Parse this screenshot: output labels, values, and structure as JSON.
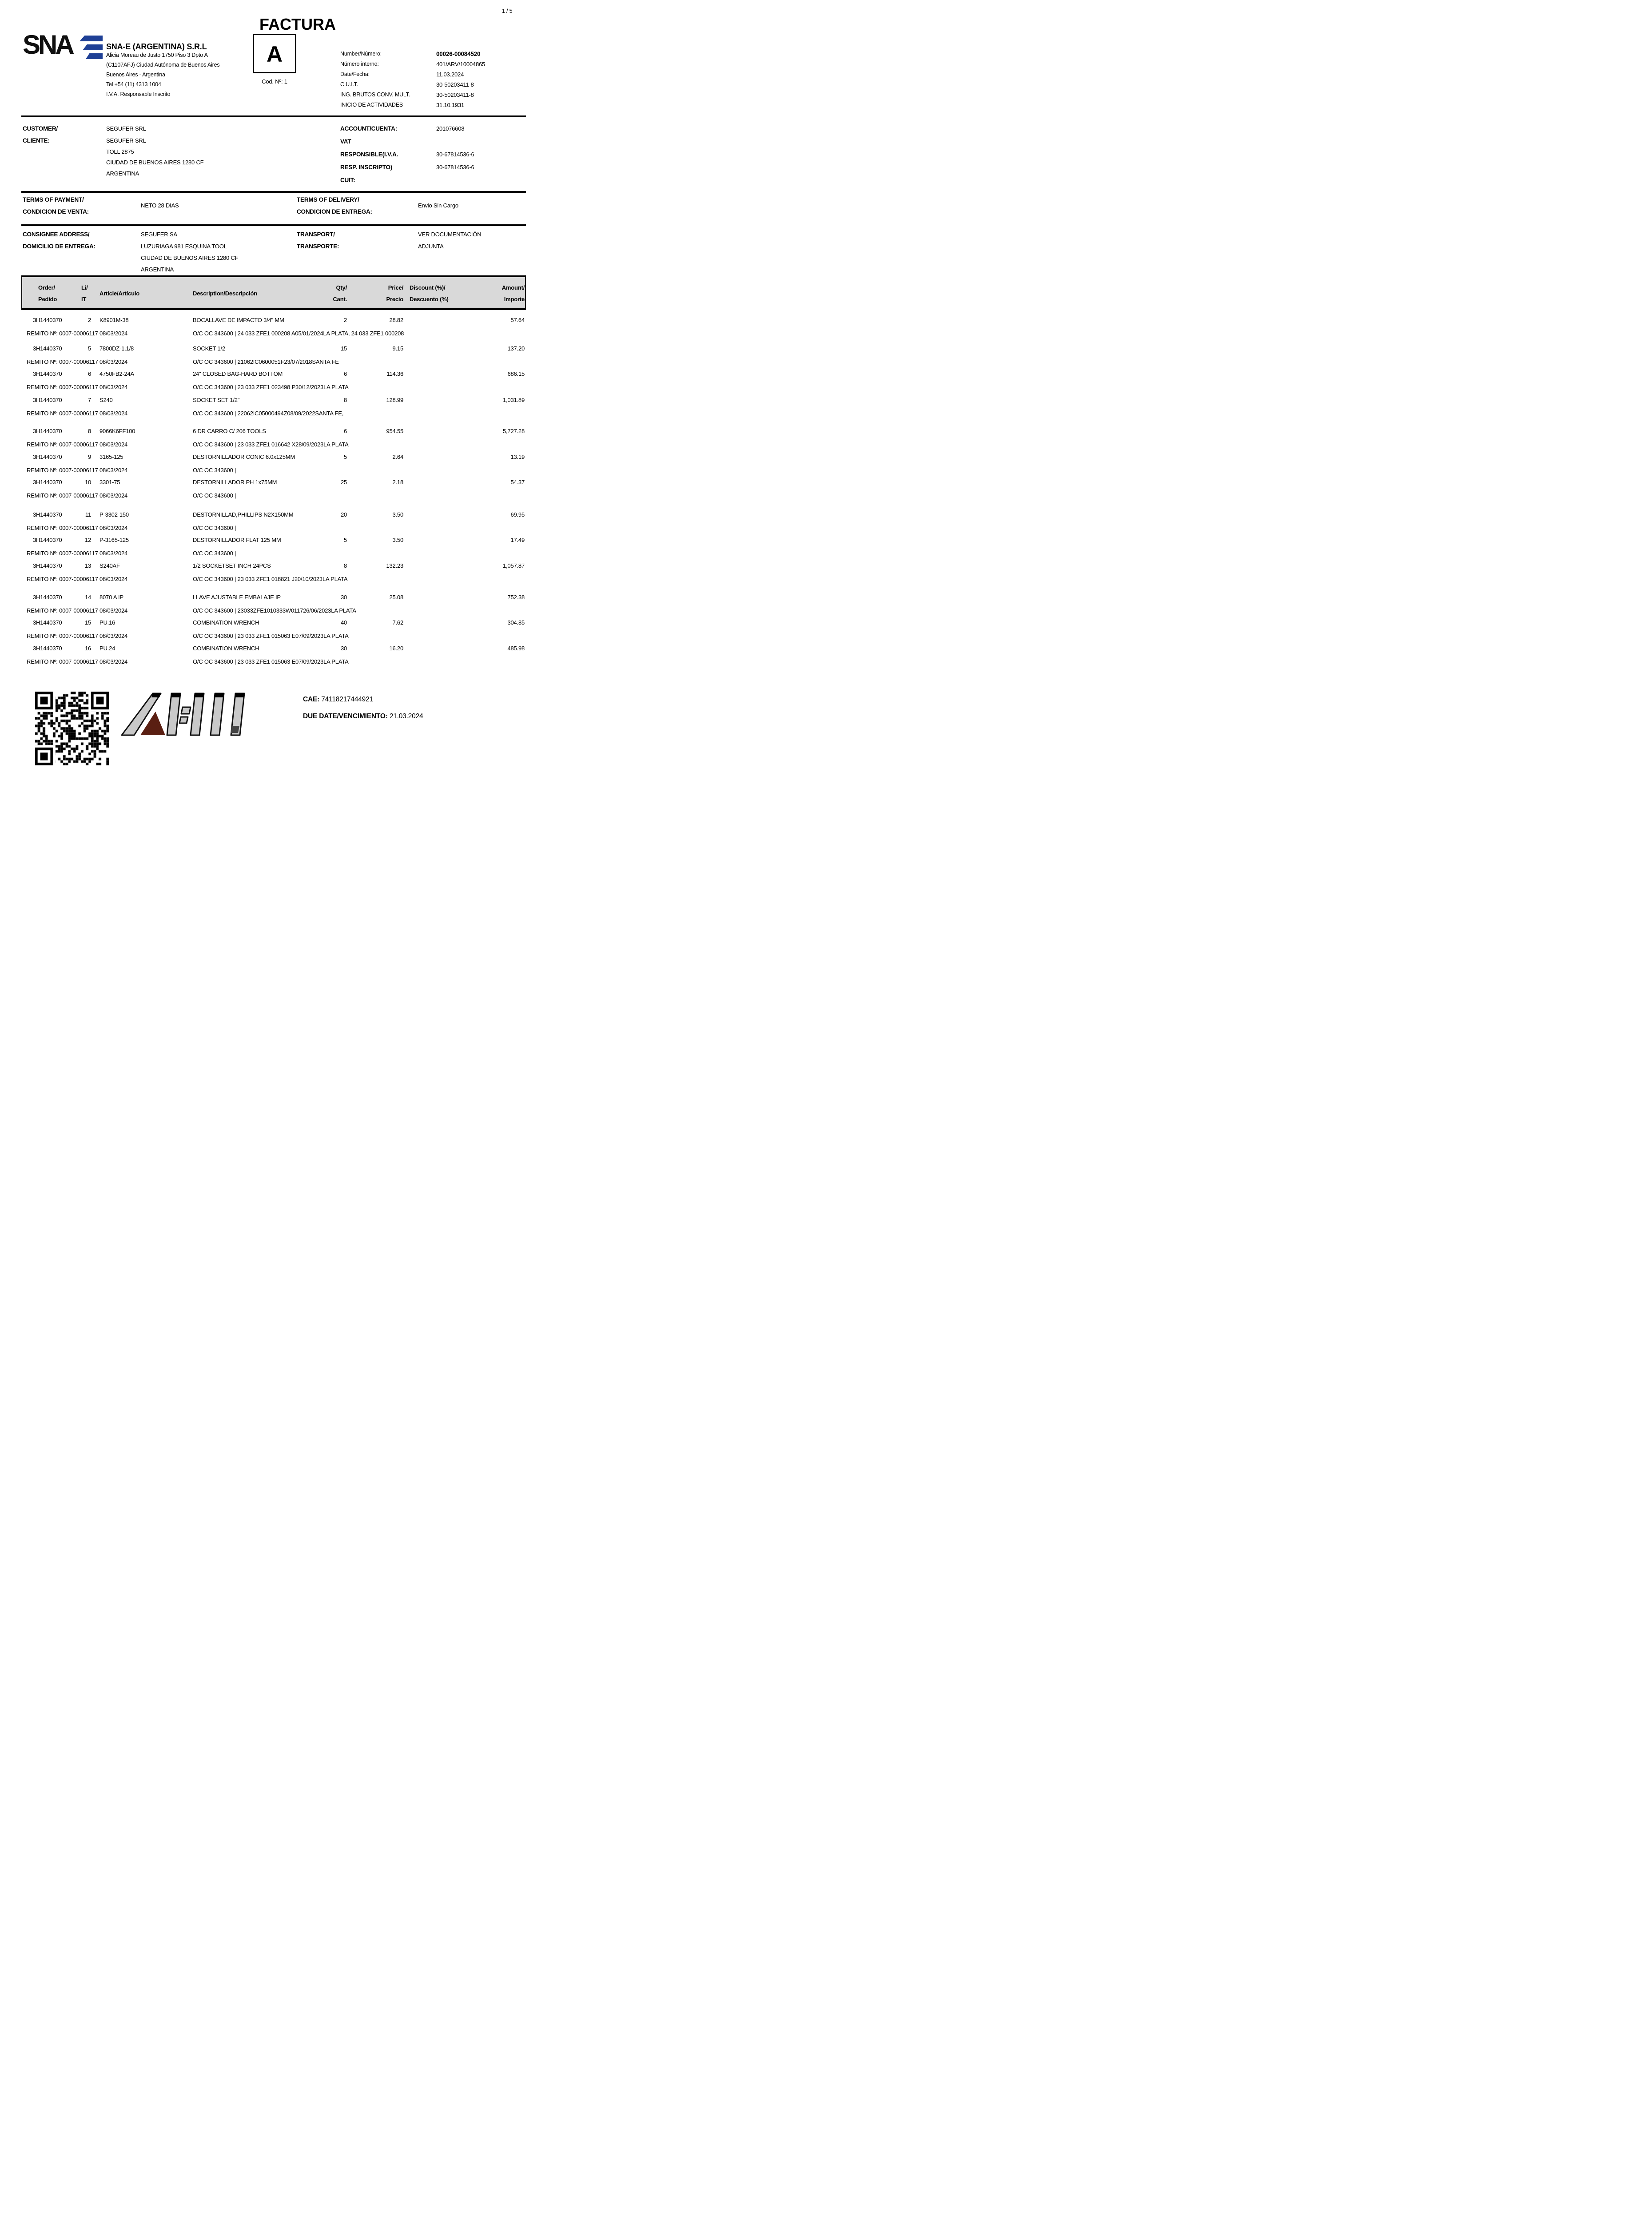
{
  "page": {
    "number_label": "1 / 5"
  },
  "title": "FACTURA",
  "letter_box": {
    "letter": "A",
    "code_label": "Cod. Nº: 1"
  },
  "company": {
    "logo_text": "SNA",
    "name": "SNA-E (ARGENTINA) S.R.L",
    "address_lines": [
      "Alicia Moreau de Justo 1750 Piso 3 Dpto A",
      "(C1107AFJ) Ciudad Autónoma de Buenos Aires",
      "Buenos Aires - Argentina",
      "Tel +54 (11) 4313 1004",
      "I.V.A. Responsable Inscrito"
    ]
  },
  "invoice_meta": {
    "rows": [
      {
        "label": "Number/Número:",
        "value": "00026-00084520",
        "bold": true
      },
      {
        "label": "Número interno:",
        "value": "401/ARV/10004865"
      },
      {
        "label": "Date/Fecha:",
        "value": "11.03.2024"
      },
      {
        "label": "C.U.I.T.",
        "value": "30-50203411-8"
      },
      {
        "label": "ING. BRUTOS CONV. MULT.",
        "value": "30-50203411-8"
      },
      {
        "label": "INICIO DE ACTIVIDADES",
        "value": "31.10.1931"
      }
    ]
  },
  "customer": {
    "label_lines": [
      "CUSTOMER/",
      "CLIENTE:"
    ],
    "value_lines": [
      "SEGUFER SRL",
      "SEGUFER SRL",
      "TOLL 2875",
      "CIUDAD DE BUENOS AIRES 1280 CF",
      "ARGENTINA"
    ]
  },
  "account": {
    "rows": [
      {
        "label": "ACCOUNT/CUENTA:",
        "value": "201076608"
      },
      {
        "label": "VAT",
        "value": ""
      },
      {
        "label": "RESPONSIBLE(I.V.A.",
        "value": "30-67814536-6"
      },
      {
        "label": "RESP. INSCRIPTO)",
        "value": "30-67814536-6"
      },
      {
        "label": "CUIT:",
        "value": ""
      }
    ]
  },
  "terms": {
    "payment_label_lines": [
      "TERMS OF PAYMENT/",
      "CONDICION DE VENTA:"
    ],
    "payment_value": "NETO 28 DIAS",
    "delivery_label_lines": [
      "TERMS OF DELIVERY/",
      "CONDICION DE ENTREGA:"
    ],
    "delivery_value": "Envio Sin Cargo"
  },
  "consignee": {
    "label_lines": [
      "CONSIGNEE ADDRESS/",
      "DOMICILIO DE ENTREGA:"
    ],
    "value_lines": [
      "SEGUFER SA",
      "LUZURIAGA 981 ESQUINA TOOL",
      "CIUDAD DE BUENOS AIRES 1280 CF",
      "ARGENTINA"
    ],
    "transport_label_lines": [
      "TRANSPORT/",
      "TRANSPORTE:"
    ],
    "transport_value_lines": [
      "VER DOCUMENTACIÓN",
      "ADJUNTA"
    ]
  },
  "table": {
    "headers": {
      "order": [
        "Order/",
        "Pedido"
      ],
      "li": [
        "Li/",
        "IT"
      ],
      "article": "Article/Artículo",
      "description": "Description/Descripción",
      "qty": [
        "Qty/",
        "Cant."
      ],
      "price": [
        "Price/",
        "Precio"
      ],
      "discount": [
        "Discount (%)/",
        "Descuento (%)"
      ],
      "amount": [
        "Amount/",
        "Importe"
      ]
    },
    "rows": [
      {
        "order": "3H1440370",
        "li": "2",
        "article": "K8901M-38",
        "description": "BOCALLAVE DE IMPACTO 3/4\" MM",
        "qty": "2",
        "price": "28.82",
        "discount": "",
        "amount": "57.64",
        "remito": "REMITO Nº: 0007-00006117 08/03/2024",
        "detail": "O/C OC 343600 |  24 033 ZFE1 000208 A05/01/2024LA PLATA, 24 033 ZFE1 000208"
      },
      {
        "order": "3H1440370",
        "li": "5",
        "article": "7800DZ-1.1/8",
        "description": "SOCKET 1/2",
        "qty": "15",
        "price": "9.15",
        "discount": "",
        "amount": "137.20",
        "remito": "REMITO Nº: 0007-00006117 08/03/2024",
        "detail": "O/C OC 343600 |  21062IC0600051F23/07/2018SANTA FE"
      },
      {
        "order": "3H1440370",
        "li": "6",
        "article": "4750FB2-24A",
        "description": "24\" CLOSED BAG-HARD BOTTOM",
        "qty": "6",
        "price": "114.36",
        "discount": "",
        "amount": "686.15",
        "remito": "REMITO Nº: 0007-00006117 08/03/2024",
        "detail": "O/C OC 343600 |  23 033 ZFE1 023498 P30/12/2023LA PLATA"
      },
      {
        "order": "3H1440370",
        "li": "7",
        "article": "S240",
        "description": "SOCKET SET 1/2\"",
        "qty": "8",
        "price": "128.99",
        "discount": "",
        "amount": "1,031.89",
        "remito": "REMITO Nº: 0007-00006117 08/03/2024",
        "detail": "O/C OC 343600 |  22062IC05000494Z08/09/2022SANTA FE,"
      },
      {
        "order": "3H1440370",
        "li": "8",
        "article": "9066K6FF100",
        "description": "6 DR CARRO  C/ 206 TOOLS",
        "qty": "6",
        "price": "954.55",
        "discount": "",
        "amount": "5,727.28",
        "remito": "REMITO Nº: 0007-00006117 08/03/2024",
        "detail": "O/C OC 343600 |  23 033 ZFE1 016642 X28/09/2023LA PLATA"
      },
      {
        "order": "3H1440370",
        "li": "9",
        "article": "3165-125",
        "description": "DESTORNILLADOR CONIC 6.0x125MM",
        "qty": "5",
        "price": "2.64",
        "discount": "",
        "amount": "13.19",
        "remito": "REMITO Nº: 0007-00006117 08/03/2024",
        "detail": "O/C OC 343600 |"
      },
      {
        "order": "3H1440370",
        "li": "10",
        "article": "3301-75",
        "description": "DESTORNILLADOR PH 1x75MM",
        "qty": "25",
        "price": "2.18",
        "discount": "",
        "amount": "54.37",
        "remito": "REMITO Nº: 0007-00006117 08/03/2024",
        "detail": "O/C OC 343600 |"
      },
      {
        "order": "3H1440370",
        "li": "11",
        "article": "P-3302-150",
        "description": "DESTORNILLAD,PHILLIPS N2X150MM",
        "qty": "20",
        "price": "3.50",
        "discount": "",
        "amount": "69.95",
        "remito": "REMITO Nº: 0007-00006117 08/03/2024",
        "detail": "O/C OC 343600 |"
      },
      {
        "order": "3H1440370",
        "li": "12",
        "article": "P-3165-125",
        "description": "DESTORNILLADOR FLAT 125 MM",
        "qty": "5",
        "price": "3.50",
        "discount": "",
        "amount": "17.49",
        "remito": "REMITO Nº: 0007-00006117 08/03/2024",
        "detail": "O/C OC 343600 |"
      },
      {
        "order": "3H1440370",
        "li": "13",
        "article": "S240AF",
        "description": "1/2 SOCKETSET INCH 24PCS",
        "qty": "8",
        "price": "132.23",
        "discount": "",
        "amount": "1,057.87",
        "remito": "REMITO Nº: 0007-00006117 08/03/2024",
        "detail": "O/C OC 343600 |  23 033 ZFE1 018821 J20/10/2023LA PLATA"
      },
      {
        "order": "3H1440370",
        "li": "14",
        "article": "8070 A IP",
        "description": "LLAVE AJUSTABLE EMBALAJE IP",
        "qty": "30",
        "price": "25.08",
        "discount": "",
        "amount": "752.38",
        "remito": "REMITO Nº: 0007-00006117 08/03/2024",
        "detail": "O/C OC 343600 |  23033ZFE1010333W011726/06/2023LA PLATA"
      },
      {
        "order": "3H1440370",
        "li": "15",
        "article": "PU.16",
        "description": "COMBINATION WRENCH",
        "qty": "40",
        "price": "7.62",
        "discount": "",
        "amount": "304.85",
        "remito": "REMITO Nº: 0007-00006117 08/03/2024",
        "detail": "O/C OC 343600 |  23 033 ZFE1 015063 E07/09/2023LA PLATA"
      },
      {
        "order": "3H1440370",
        "li": "16",
        "article": "PU.24",
        "description": "COMBINATION WRENCH",
        "qty": "30",
        "price": "16.20",
        "discount": "",
        "amount": "485.98",
        "remito": "REMITO Nº: 0007-00006117 08/03/2024",
        "detail": "O/C OC 343600 |  23 033 ZFE1 015063 E07/09/2023LA PLATA"
      }
    ]
  },
  "footer": {
    "cae_label": "CAE:",
    "cae_value": "74118217444921",
    "due_label": "DUE DATE/VENCIMIENTO:",
    "due_value": "21.03.2024",
    "qr_icon": "qr-code",
    "afip_icon": "afip-logo"
  },
  "colors": {
    "logo_blue": "#1f4096",
    "table_header_bg": "#d9d9d9",
    "afip_gray": "#c9c9c9",
    "afip_brown": "#5a1f12"
  }
}
